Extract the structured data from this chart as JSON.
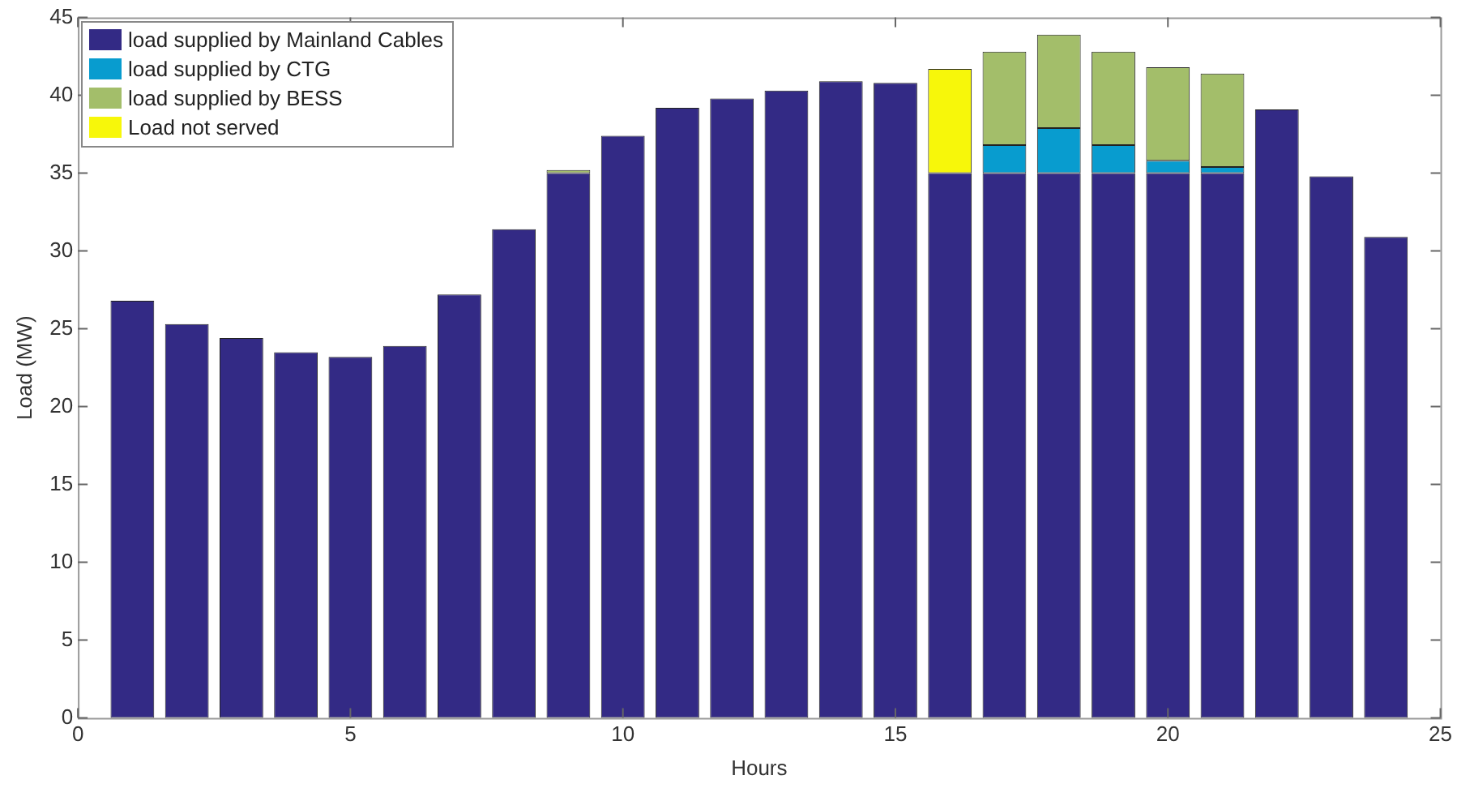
{
  "chart_data": {
    "type": "bar",
    "stacked": true,
    "xlabel": "Hours",
    "ylabel": "Load (MW)",
    "x": [
      1,
      2,
      3,
      4,
      5,
      6,
      7,
      8,
      9,
      10,
      11,
      12,
      13,
      14,
      15,
      16,
      17,
      18,
      19,
      20,
      21,
      22,
      23,
      24
    ],
    "xlim": [
      0,
      25
    ],
    "xticks": [
      0,
      5,
      10,
      15,
      20,
      25
    ],
    "ylim": [
      0,
      45
    ],
    "yticks": [
      0,
      5,
      10,
      15,
      20,
      25,
      30,
      35,
      40,
      45
    ],
    "grid": false,
    "legend": "top left",
    "series": [
      {
        "name": "load supplied by Mainland Cables",
        "color": "#332a85",
        "values": [
          26.8,
          25.3,
          24.4,
          23.5,
          23.2,
          23.9,
          27.2,
          31.4,
          35,
          37.4,
          39.2,
          39.8,
          40.3,
          40.9,
          40.8,
          35,
          35,
          35,
          35,
          35,
          35,
          39.1,
          34.8,
          30.9
        ]
      },
      {
        "name": "load supplied by CTG",
        "color": "#089ccf",
        "values": [
          null,
          null,
          null,
          null,
          null,
          null,
          null,
          null,
          null,
          null,
          null,
          null,
          null,
          null,
          null,
          null,
          1.8,
          2.9,
          1.8,
          0.8,
          0.4,
          null,
          null,
          null
        ]
      },
      {
        "name": "load supplied by BESS",
        "color": "#a3be6a",
        "values": [
          null,
          null,
          null,
          null,
          null,
          null,
          null,
          null,
          0.2,
          null,
          null,
          null,
          null,
          null,
          null,
          null,
          6,
          6,
          6,
          6,
          6,
          null,
          null,
          null
        ]
      },
      {
        "name": "Load not served",
        "color": "#f7f70a",
        "values": [
          null,
          null,
          null,
          null,
          null,
          null,
          null,
          null,
          null,
          null,
          null,
          null,
          null,
          null,
          null,
          6.7,
          null,
          null,
          null,
          null,
          null,
          null,
          null,
          null
        ]
      }
    ]
  }
}
